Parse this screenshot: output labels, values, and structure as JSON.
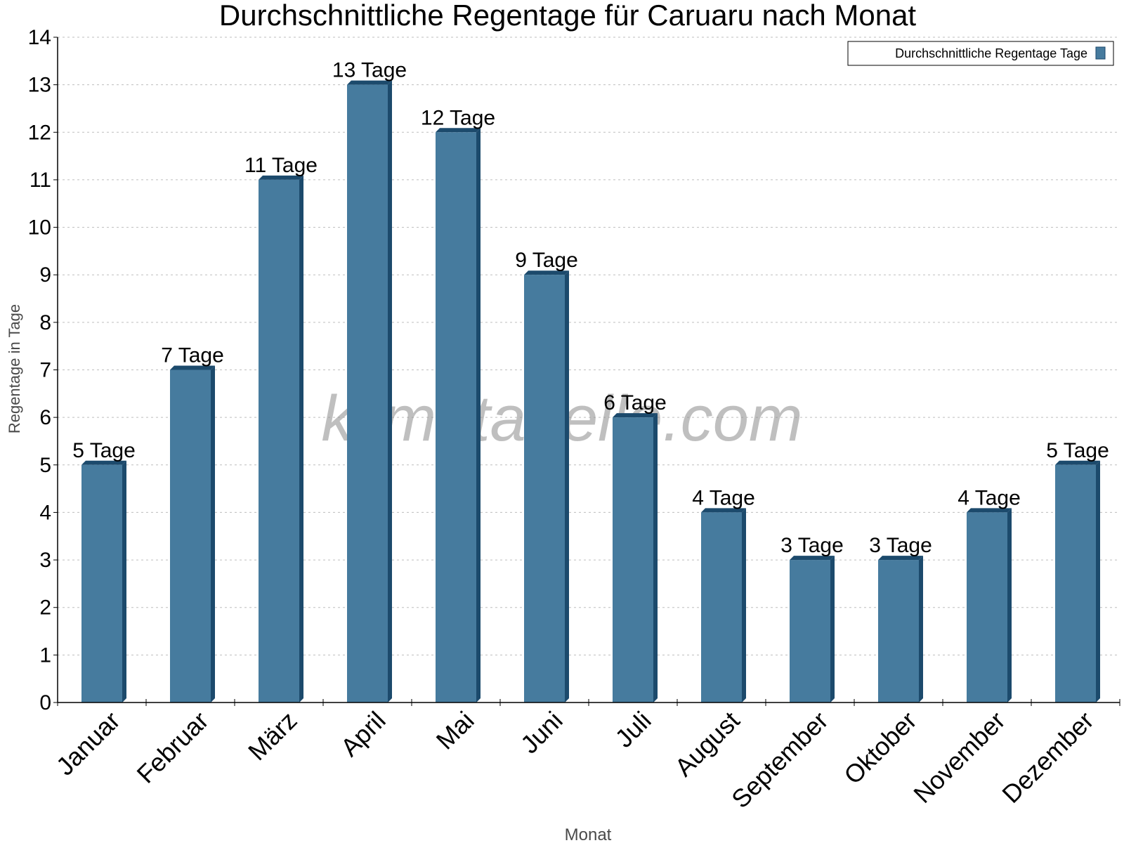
{
  "chart_data": {
    "type": "bar",
    "title": "Durchschnittliche Regentage für Caruaru nach Monat",
    "xlabel": "Monat",
    "ylabel": "Regentage in Tage",
    "ylim": [
      0,
      14
    ],
    "yticks": [
      0,
      1,
      2,
      3,
      4,
      5,
      6,
      7,
      8,
      9,
      10,
      11,
      12,
      13,
      14
    ],
    "categories": [
      "Januar",
      "Februar",
      "März",
      "April",
      "Mai",
      "Juni",
      "Juli",
      "August",
      "September",
      "Oktober",
      "November",
      "Dezember"
    ],
    "series": [
      {
        "name": "Durchschnittliche Regentage Tage",
        "values": [
          5,
          7,
          11,
          13,
          12,
          9,
          6,
          4,
          3,
          3,
          4,
          5
        ],
        "labels": [
          "5 Tage",
          "7 Tage",
          "11 Tage",
          "13 Tage",
          "12 Tage",
          "9 Tage",
          "6 Tage",
          "4 Tage",
          "3 Tage",
          "3 Tage",
          "4 Tage",
          "5 Tage"
        ],
        "color": "#467b9e",
        "side_color": "#1c4a6c"
      }
    ],
    "grid": true,
    "legend": "top-right",
    "watermark": "klimatabelle.com"
  }
}
